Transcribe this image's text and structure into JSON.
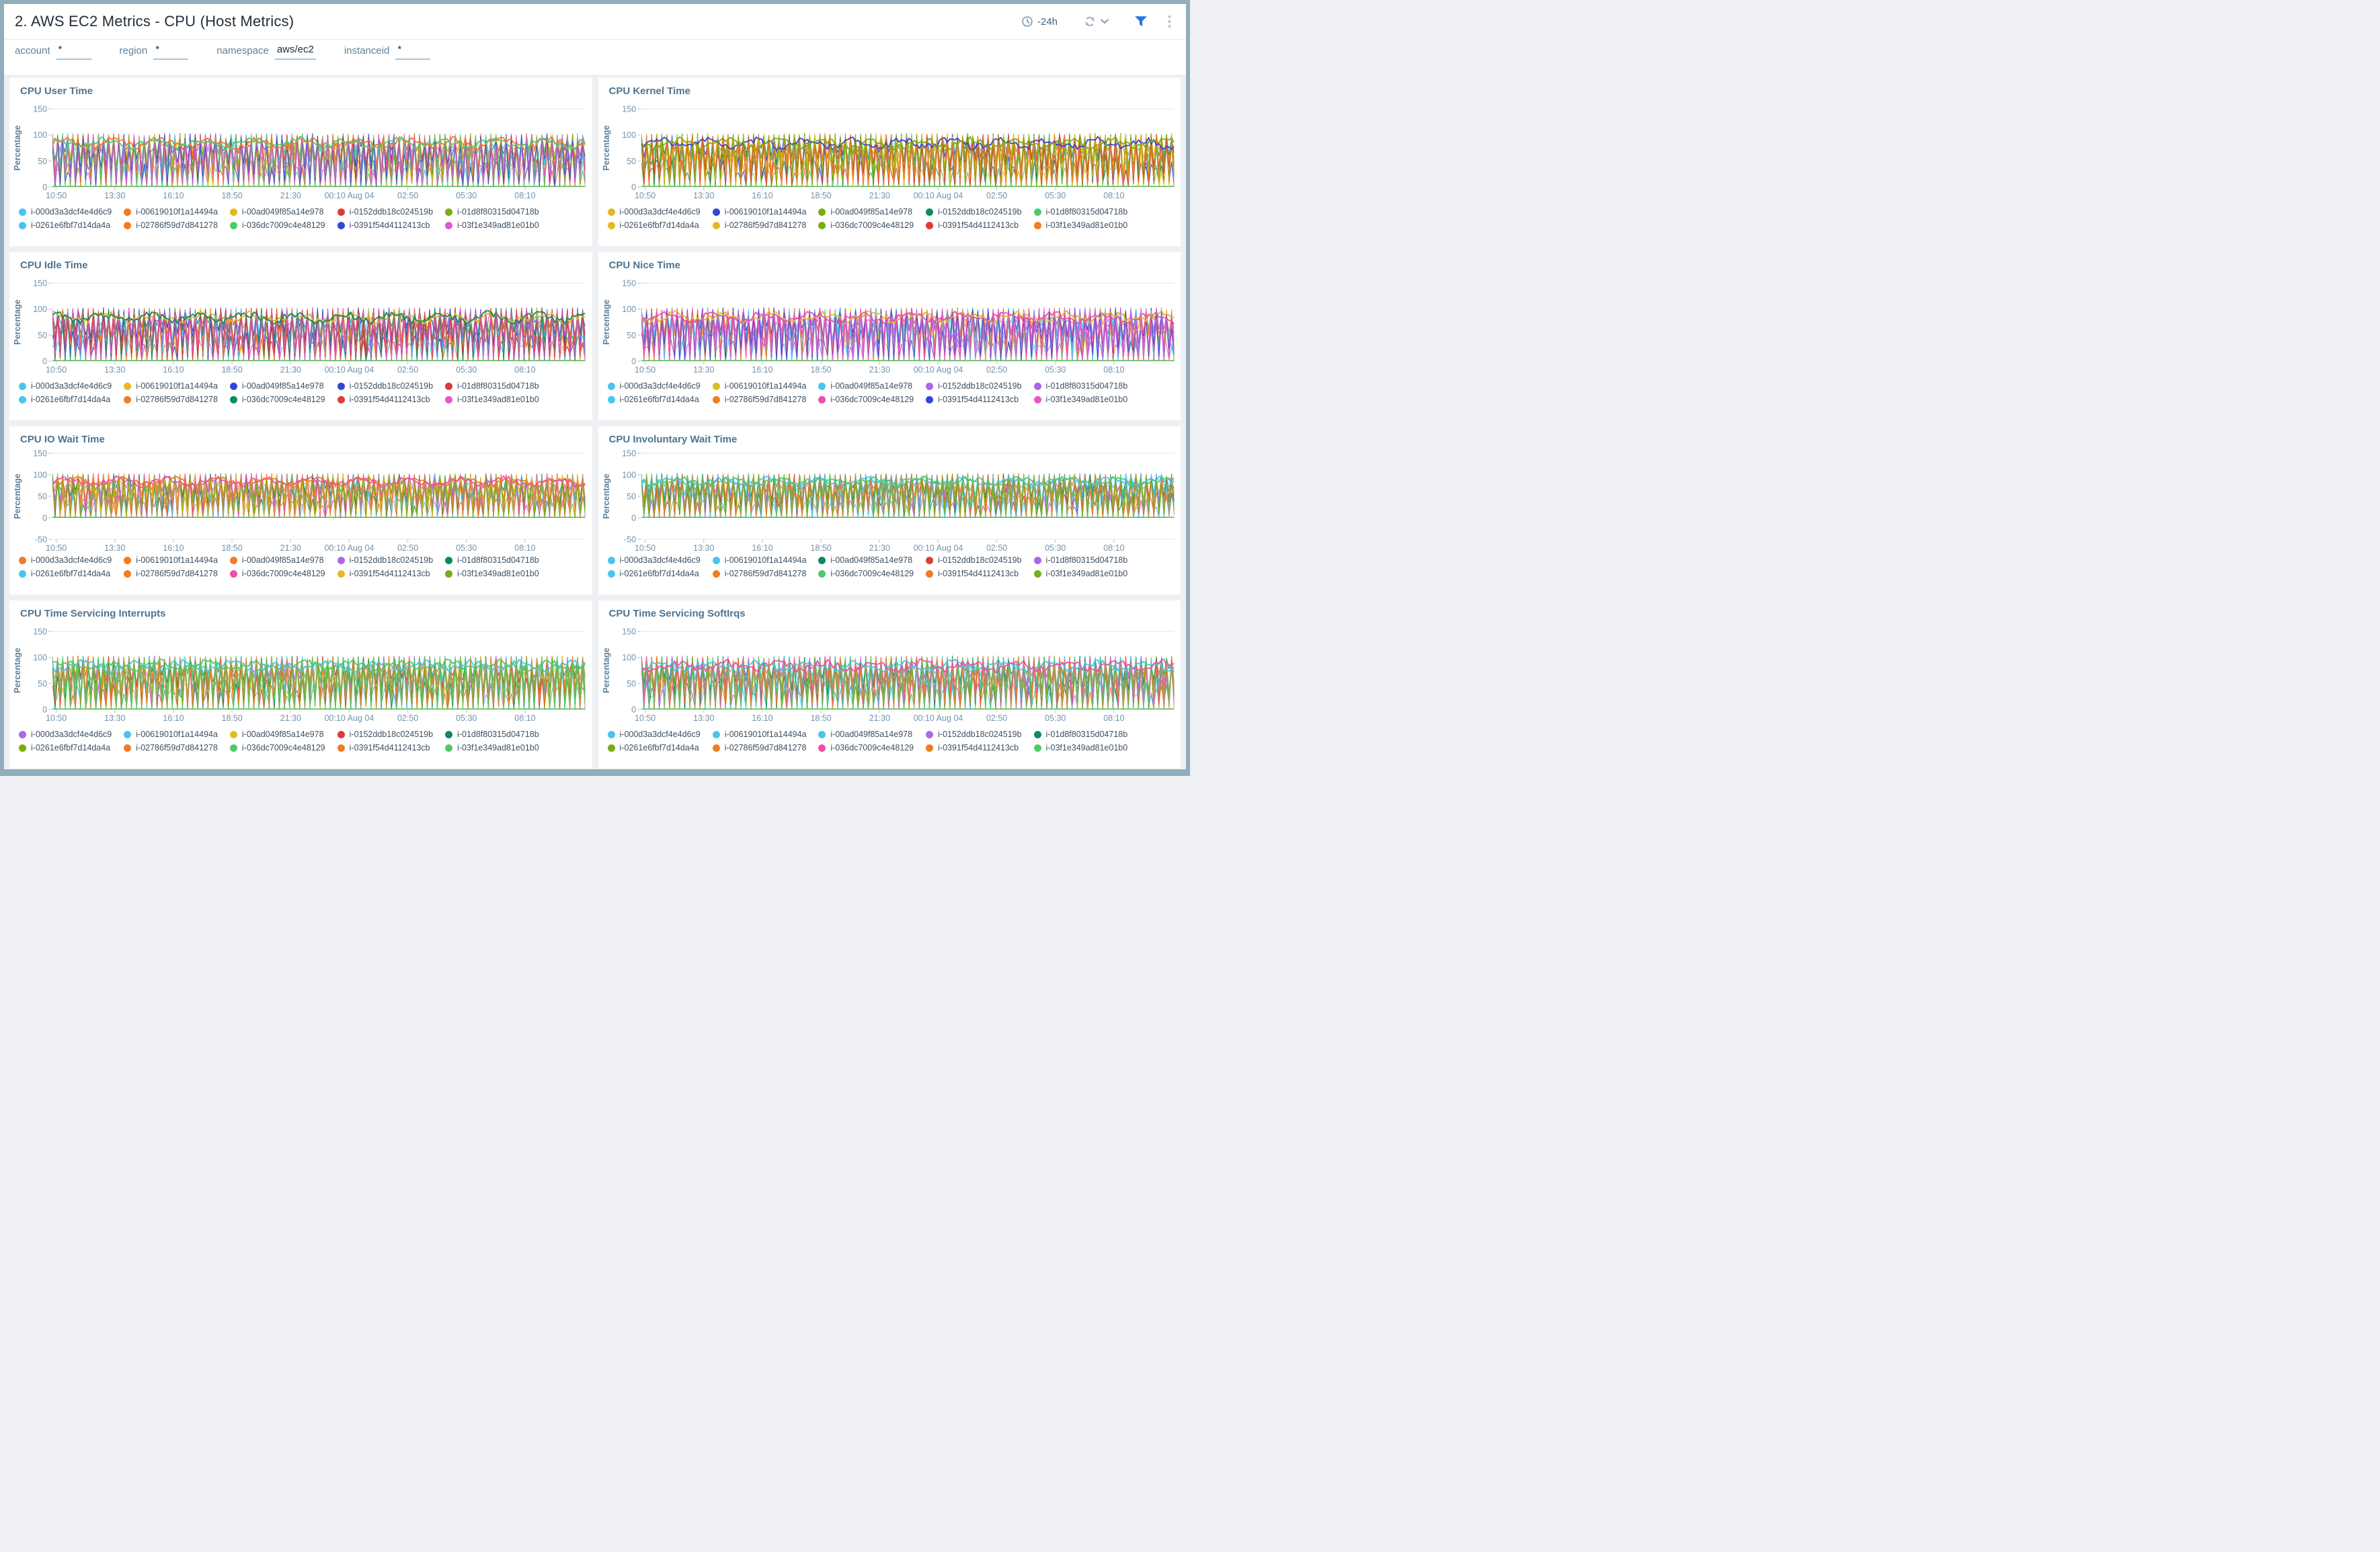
{
  "header": {
    "title": "2. AWS EC2 Metrics - CPU (Host Metrics)",
    "time_range": "-24h"
  },
  "filters": [
    {
      "label": "account",
      "value": "*"
    },
    {
      "label": "region",
      "value": "*"
    },
    {
      "label": "namespace",
      "value": "aws/ec2"
    },
    {
      "label": "instanceid",
      "value": "*"
    }
  ],
  "theme": {
    "frame_border": "#92adbb",
    "panel_gap": "#eef0f3",
    "panel_bg": "#ffffff",
    "header_title": "#232e3a",
    "panel_title": "#4d7492",
    "axis_text": "#7392ab",
    "axis_label": "#5d7f99",
    "grid_line": "#e8edf1",
    "tick_line": "#c9d4da",
    "legend_text": "#3c5063",
    "filter_underline": "#a9c6d8",
    "filter_icon_blue": "#2176e8",
    "icon_slate": "#8aa4b8",
    "zero_line_color": "#4bb648"
  },
  "chart_data": {
    "type": "line",
    "note": "Eight panels of dense per-instance CPU percentage time series; each instance oscillates across ~0-100% over the -24h window",
    "x_ticks": [
      "10:50",
      "13:30",
      "16:10",
      "18:50",
      "21:30",
      "00:10 Aug 04",
      "02:50",
      "05:30",
      "08:10"
    ],
    "y_value_range": [
      0,
      100
    ],
    "series_names": [
      "i-000d3a3dcf4e4d6c9",
      "i-00619010f1a14494a",
      "i-00ad049f85a14e978",
      "i-0152ddb18c024519b",
      "i-01d8f80315d04718b",
      "i-0261e6fbf7d14da4a",
      "i-02786f59d7d841278",
      "i-036dc7009c4e48129",
      "i-0391f54d4112413cb",
      "i-03f1e349ad81e01b0"
    ]
  },
  "charts": [
    {
      "title": "CPU User Time",
      "ylabel": "Percentage",
      "y_ticks": [
        "150",
        "100",
        "50",
        "0"
      ],
      "ylim": [
        0,
        150
      ],
      "x_ticks": [
        "10:50",
        "13:30",
        "16:10",
        "18:50",
        "21:30",
        "00:10 Aug 04",
        "02:50",
        "05:30",
        "08:10"
      ],
      "legend": [
        {
          "id": "i-000d3a3dcf4e4d6c9",
          "color": "#49c4ef"
        },
        {
          "id": "i-00619010f1a14494a",
          "color": "#f07c23"
        },
        {
          "id": "i-00ad049f85a14e978",
          "color": "#dfbc1f"
        },
        {
          "id": "i-0152ddb18c024519b",
          "color": "#e03a3a"
        },
        {
          "id": "i-01d8f80315d04718b",
          "color": "#78ad13"
        },
        {
          "id": "i-0261e6fbf7d14da4a",
          "color": "#49c4ef"
        },
        {
          "id": "i-02786f59d7d841278",
          "color": "#f07c23"
        },
        {
          "id": "i-036dc7009c4e48129",
          "color": "#50c96d"
        },
        {
          "id": "i-0391f54d4112413cb",
          "color": "#3546d4"
        },
        {
          "id": "i-03f1e349ad81e01b0",
          "color": "#e257ce"
        }
      ]
    },
    {
      "title": "CPU Kernel Time",
      "ylabel": "Percentage",
      "y_ticks": [
        "150",
        "100",
        "50",
        "0"
      ],
      "ylim": [
        0,
        150
      ],
      "x_ticks": [
        "10:50",
        "13:30",
        "16:10",
        "18:50",
        "21:30",
        "00:10 Aug 04",
        "02:50",
        "05:30",
        "08:10"
      ],
      "legend": [
        {
          "id": "i-000d3a3dcf4e4d6c9",
          "color": "#dfbc1f"
        },
        {
          "id": "i-00619010f1a14494a",
          "color": "#3546d4"
        },
        {
          "id": "i-00ad049f85a14e978",
          "color": "#78ad13"
        },
        {
          "id": "i-0152ddb18c024519b",
          "color": "#0e8a63"
        },
        {
          "id": "i-01d8f80315d04718b",
          "color": "#50c96d"
        },
        {
          "id": "i-0261e6fbf7d14da4a",
          "color": "#dfbc1f"
        },
        {
          "id": "i-02786f59d7d841278",
          "color": "#dfbc1f"
        },
        {
          "id": "i-036dc7009c4e48129",
          "color": "#78ad13"
        },
        {
          "id": "i-0391f54d4112413cb",
          "color": "#e03a3a"
        },
        {
          "id": "i-03f1e349ad81e01b0",
          "color": "#f07c23"
        }
      ]
    },
    {
      "title": "CPU Idle Time",
      "ylabel": "Percentage",
      "y_ticks": [
        "150",
        "100",
        "50",
        "0"
      ],
      "ylim": [
        0,
        150
      ],
      "x_ticks": [
        "10:50",
        "13:30",
        "16:10",
        "18:50",
        "21:30",
        "00:10 Aug 04",
        "02:50",
        "05:30",
        "08:10"
      ],
      "legend": [
        {
          "id": "i-000d3a3dcf4e4d6c9",
          "color": "#49c4ef"
        },
        {
          "id": "i-00619010f1a14494a",
          "color": "#dfbc1f"
        },
        {
          "id": "i-00ad049f85a14e978",
          "color": "#3546d4"
        },
        {
          "id": "i-0152ddb18c024519b",
          "color": "#3546d4"
        },
        {
          "id": "i-01d8f80315d04718b",
          "color": "#e03a3a"
        },
        {
          "id": "i-0261e6fbf7d14da4a",
          "color": "#49c4ef"
        },
        {
          "id": "i-02786f59d7d841278",
          "color": "#f07c23"
        },
        {
          "id": "i-036dc7009c4e48129",
          "color": "#0e8a63"
        },
        {
          "id": "i-0391f54d4112413cb",
          "color": "#e03a3a"
        },
        {
          "id": "i-03f1e349ad81e01b0",
          "color": "#e257ce"
        }
      ]
    },
    {
      "title": "CPU Nice Time",
      "ylabel": "Percentage",
      "y_ticks": [
        "150",
        "100",
        "50",
        "0"
      ],
      "ylim": [
        0,
        150
      ],
      "x_ticks": [
        "10:50",
        "13:30",
        "16:10",
        "18:50",
        "21:30",
        "00:10 Aug 04",
        "02:50",
        "05:30",
        "08:10"
      ],
      "legend": [
        {
          "id": "i-000d3a3dcf4e4d6c9",
          "color": "#49c4ef"
        },
        {
          "id": "i-00619010f1a14494a",
          "color": "#dfbc1f"
        },
        {
          "id": "i-00ad049f85a14e978",
          "color": "#49c4ef"
        },
        {
          "id": "i-0152ddb18c024519b",
          "color": "#ad66ea"
        },
        {
          "id": "i-01d8f80315d04718b",
          "color": "#ad66ea"
        },
        {
          "id": "i-0261e6fbf7d14da4a",
          "color": "#49c4ef"
        },
        {
          "id": "i-02786f59d7d841278",
          "color": "#f07c23"
        },
        {
          "id": "i-036dc7009c4e48129",
          "color": "#ee4fa9"
        },
        {
          "id": "i-0391f54d4112413cb",
          "color": "#3546d4"
        },
        {
          "id": "i-03f1e349ad81e01b0",
          "color": "#e957c9"
        }
      ]
    },
    {
      "title": "CPU IO Wait Time",
      "ylabel": "Percentage",
      "y_ticks": [
        "150",
        "100",
        "50",
        "0",
        "-50"
      ],
      "ylim": [
        -50,
        150
      ],
      "x_ticks": [
        "10:50",
        "13:30",
        "16:10",
        "18:50",
        "21:30",
        "00:10 Aug 04",
        "02:50",
        "05:30",
        "08:10"
      ],
      "legend": [
        {
          "id": "i-000d3a3dcf4e4d6c9",
          "color": "#f07c23"
        },
        {
          "id": "i-00619010f1a14494a",
          "color": "#f07c23"
        },
        {
          "id": "i-00ad049f85a14e978",
          "color": "#f07c23"
        },
        {
          "id": "i-0152ddb18c024519b",
          "color": "#ad66ea"
        },
        {
          "id": "i-01d8f80315d04718b",
          "color": "#0e8a63"
        },
        {
          "id": "i-0261e6fbf7d14da4a",
          "color": "#49c4ef"
        },
        {
          "id": "i-02786f59d7d841278",
          "color": "#f07c23"
        },
        {
          "id": "i-036dc7009c4e48129",
          "color": "#ee4fa9"
        },
        {
          "id": "i-0391f54d4112413cb",
          "color": "#dfbc1f"
        },
        {
          "id": "i-03f1e349ad81e01b0",
          "color": "#78ad13"
        }
      ]
    },
    {
      "title": "CPU Involuntary Wait Time",
      "ylabel": "Percentage",
      "y_ticks": [
        "150",
        "100",
        "50",
        "0",
        "-50"
      ],
      "ylim": [
        -50,
        150
      ],
      "x_ticks": [
        "10:50",
        "13:30",
        "16:10",
        "18:50",
        "21:30",
        "00:10 Aug 04",
        "02:50",
        "05:30",
        "08:10"
      ],
      "legend": [
        {
          "id": "i-000d3a3dcf4e4d6c9",
          "color": "#49c4ef"
        },
        {
          "id": "i-00619010f1a14494a",
          "color": "#49c4ef"
        },
        {
          "id": "i-00ad049f85a14e978",
          "color": "#0e8a63"
        },
        {
          "id": "i-0152ddb18c024519b",
          "color": "#e03a3a"
        },
        {
          "id": "i-01d8f80315d04718b",
          "color": "#ad66ea"
        },
        {
          "id": "i-0261e6fbf7d14da4a",
          "color": "#49c4ef"
        },
        {
          "id": "i-02786f59d7d841278",
          "color": "#f07c23"
        },
        {
          "id": "i-036dc7009c4e48129",
          "color": "#50c96d"
        },
        {
          "id": "i-0391f54d4112413cb",
          "color": "#f07c23"
        },
        {
          "id": "i-03f1e349ad81e01b0",
          "color": "#78ad13"
        }
      ]
    },
    {
      "title": "CPU Time Servicing Interrupts",
      "ylabel": "Percentage",
      "y_ticks": [
        "150",
        "100",
        "50",
        "0"
      ],
      "ylim": [
        0,
        150
      ],
      "x_ticks": [
        "10:50",
        "13:30",
        "16:10",
        "18:50",
        "21:30",
        "00:10 Aug 04",
        "02:50",
        "05:30",
        "08:10"
      ],
      "legend": [
        {
          "id": "i-000d3a3dcf4e4d6c9",
          "color": "#ad66ea"
        },
        {
          "id": "i-00619010f1a14494a",
          "color": "#49c4ef"
        },
        {
          "id": "i-00ad049f85a14e978",
          "color": "#dfbc1f"
        },
        {
          "id": "i-0152ddb18c024519b",
          "color": "#e03a3a"
        },
        {
          "id": "i-01d8f80315d04718b",
          "color": "#0e8a63"
        },
        {
          "id": "i-0261e6fbf7d14da4a",
          "color": "#78ad13"
        },
        {
          "id": "i-02786f59d7d841278",
          "color": "#f07c23"
        },
        {
          "id": "i-036dc7009c4e48129",
          "color": "#50c96d"
        },
        {
          "id": "i-0391f54d4112413cb",
          "color": "#f07c23"
        },
        {
          "id": "i-03f1e349ad81e01b0",
          "color": "#50c96d"
        }
      ]
    },
    {
      "title": "CPU Time Servicing SoftIrqs",
      "ylabel": "Percentage",
      "y_ticks": [
        "150",
        "100",
        "50",
        "0"
      ],
      "ylim": [
        0,
        150
      ],
      "x_ticks": [
        "10:50",
        "13:30",
        "16:10",
        "18:50",
        "21:30",
        "00:10 Aug 04",
        "02:50",
        "05:30",
        "08:10"
      ],
      "legend": [
        {
          "id": "i-000d3a3dcf4e4d6c9",
          "color": "#49c4ef"
        },
        {
          "id": "i-00619010f1a14494a",
          "color": "#49c4ef"
        },
        {
          "id": "i-00ad049f85a14e978",
          "color": "#49c4ef"
        },
        {
          "id": "i-0152ddb18c024519b",
          "color": "#ad66ea"
        },
        {
          "id": "i-01d8f80315d04718b",
          "color": "#0e8a63"
        },
        {
          "id": "i-0261e6fbf7d14da4a",
          "color": "#78ad13"
        },
        {
          "id": "i-02786f59d7d841278",
          "color": "#f07c23"
        },
        {
          "id": "i-036dc7009c4e48129",
          "color": "#ee4fa9"
        },
        {
          "id": "i-0391f54d4112413cb",
          "color": "#f07c23"
        },
        {
          "id": "i-03f1e349ad81e01b0",
          "color": "#50c96d"
        }
      ]
    }
  ]
}
